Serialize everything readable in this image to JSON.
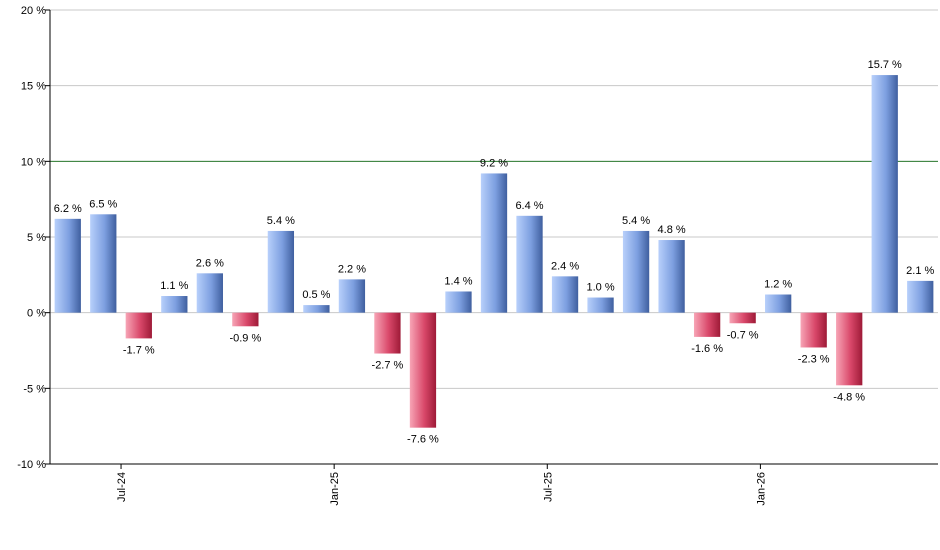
{
  "chart_data": {
    "type": "bar",
    "title": "",
    "xlabel": "",
    "ylabel": "",
    "ylim": [
      -10,
      20
    ],
    "y_ticks": [
      20,
      15,
      10,
      5,
      0,
      -5,
      -10
    ],
    "y_tick_suffix": " %",
    "value_suffix": " %",
    "grid": true,
    "reference_line": {
      "value": 10,
      "color": "#2e7d32"
    },
    "x_tick_labels": [
      {
        "label": "Jul-24",
        "index": 1.5
      },
      {
        "label": "Jan-25",
        "index": 7.5
      },
      {
        "label": "Jul-25",
        "index": 13.5
      },
      {
        "label": "Jan-26",
        "index": 19.5
      }
    ],
    "values": [
      6.2,
      6.5,
      -1.7,
      1.1,
      2.6,
      -0.9,
      5.4,
      0.5,
      2.2,
      -2.7,
      -7.6,
      1.4,
      9.2,
      6.4,
      2.4,
      1.0,
      5.4,
      4.8,
      -1.6,
      -0.7,
      1.2,
      -2.3,
      -4.8,
      15.7,
      2.1
    ],
    "value_labels": [
      "6.2 %",
      "6.5 %",
      "-1.7 %",
      "1.1 %",
      "2.6 %",
      "-0.9 %",
      "5.4 %",
      "0.5 %",
      "2.2 %",
      "-2.7 %",
      "-7.6 %",
      "1.4 %",
      "9.2 %",
      "6.4 %",
      "2.4 %",
      "1.0 %",
      "5.4 %",
      "4.8 %",
      "-1.6 %",
      "-0.7 %",
      "1.2 %",
      "-2.3 %",
      "-4.8 %",
      "15.7 %",
      "2.1 %"
    ],
    "colors": {
      "positive_light": "#a9c4f5",
      "positive_dark": "#4a6fb8",
      "negative_light": "#f08aa0",
      "negative_dark": "#b8203f",
      "grid": "#c8c8c8",
      "axis": "#000000"
    }
  }
}
